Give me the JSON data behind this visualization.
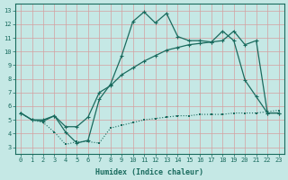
{
  "xlabel": "Humidex (Indice chaleur)",
  "xlim": [
    -0.5,
    23.5
  ],
  "ylim": [
    2.5,
    13.5
  ],
  "xticks": [
    0,
    1,
    2,
    3,
    4,
    5,
    6,
    7,
    8,
    9,
    10,
    11,
    12,
    13,
    14,
    15,
    16,
    17,
    18,
    19,
    20,
    21,
    22,
    23
  ],
  "yticks": [
    3,
    4,
    5,
    6,
    7,
    8,
    9,
    10,
    11,
    12,
    13
  ],
  "bg_color": "#c5e8e5",
  "grid_color": "#b0d8d4",
  "line_color": "#1a6b5e",
  "line1_x": [
    0,
    1,
    2,
    3,
    4,
    5,
    6,
    7,
    8,
    9,
    10,
    11,
    12,
    13,
    14,
    15,
    16,
    17,
    18,
    19,
    20,
    21,
    22,
    23
  ],
  "line1_y": [
    5.5,
    5.0,
    4.8,
    4.1,
    3.2,
    3.4,
    3.4,
    3.3,
    4.4,
    4.6,
    4.8,
    5.0,
    5.1,
    5.2,
    5.3,
    5.3,
    5.4,
    5.4,
    5.4,
    5.5,
    5.5,
    5.5,
    5.6,
    5.7
  ],
  "line2_x": [
    0,
    1,
    2,
    3,
    4,
    5,
    6,
    7,
    8,
    9,
    10,
    11,
    12,
    13,
    14,
    15,
    16,
    17,
    18,
    19,
    20,
    21,
    22,
    23
  ],
  "line2_y": [
    5.5,
    5.0,
    4.9,
    5.3,
    4.1,
    3.3,
    3.5,
    6.5,
    7.6,
    9.7,
    12.2,
    12.9,
    12.1,
    12.8,
    11.1,
    10.8,
    10.8,
    10.7,
    11.5,
    10.8,
    7.9,
    6.7,
    5.5,
    5.5
  ],
  "line3_x": [
    0,
    1,
    2,
    3,
    4,
    5,
    6,
    7,
    8,
    9,
    10,
    11,
    12,
    13,
    14,
    15,
    16,
    17,
    18,
    19,
    20,
    21,
    22,
    23
  ],
  "line3_y": [
    5.5,
    5.0,
    5.0,
    5.3,
    4.5,
    4.5,
    5.2,
    7.0,
    7.5,
    8.3,
    8.8,
    9.3,
    9.7,
    10.1,
    10.3,
    10.5,
    10.6,
    10.7,
    10.8,
    11.5,
    10.5,
    10.8,
    5.5,
    5.5
  ]
}
